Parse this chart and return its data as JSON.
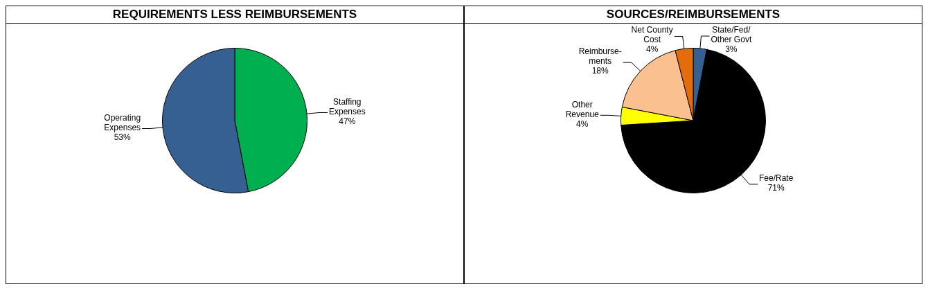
{
  "chart_data": [
    {
      "type": "pie",
      "title": "REQUIREMENTS LESS REIMBURSEMENTS",
      "categories": [
        "Staffing Expenses",
        "Operating Expenses"
      ],
      "values": [
        47,
        53
      ],
      "value_labels": [
        "47%",
        "53%"
      ],
      "colors": [
        "#00b050",
        "#376092"
      ],
      "legend": false
    },
    {
      "type": "pie",
      "title": "SOURCES/REIMBURSEMENTS",
      "categories": [
        "State/Fed/Other Govt",
        "Fee/Rate",
        "Other Revenue",
        "Reimburse-ments",
        "Net County Cost"
      ],
      "values": [
        3,
        71,
        4,
        18,
        4
      ],
      "value_labels": [
        "3%",
        "71%",
        "4%",
        "18%",
        "4%"
      ],
      "colors": [
        "#376092",
        "#000000",
        "#ffff00",
        "#fac090",
        "#e46c0a"
      ],
      "legend": false
    }
  ]
}
